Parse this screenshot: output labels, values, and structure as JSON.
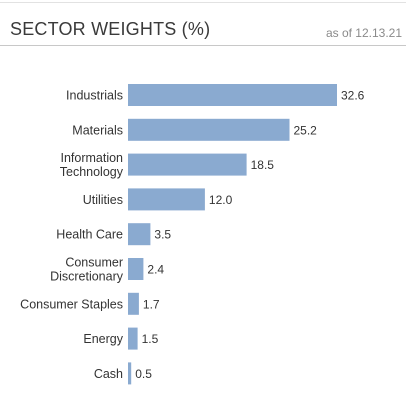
{
  "header": {
    "title": "SECTOR WEIGHTS (%)",
    "as_of": "as of 12.13.21"
  },
  "chart_data": {
    "type": "bar",
    "orientation": "horizontal",
    "title": "SECTOR WEIGHTS (%)",
    "categories": [
      [
        "Industrials"
      ],
      [
        "Materials"
      ],
      [
        "Information",
        "Technology"
      ],
      [
        "Utilities"
      ],
      [
        "Health Care"
      ],
      [
        "Consumer",
        "Discretionary"
      ],
      [
        "Consumer Staples"
      ],
      [
        "Energy"
      ],
      [
        "Cash"
      ]
    ],
    "values": [
      32.6,
      25.2,
      18.5,
      12.0,
      3.5,
      2.4,
      1.7,
      1.5,
      0.5
    ],
    "value_labels": [
      "32.6",
      "25.2",
      "18.5",
      "12.0",
      "3.5",
      "2.4",
      "1.7",
      "1.5",
      "0.5"
    ],
    "bar_color": "#8aaad0",
    "grid": false,
    "legend": "none"
  }
}
